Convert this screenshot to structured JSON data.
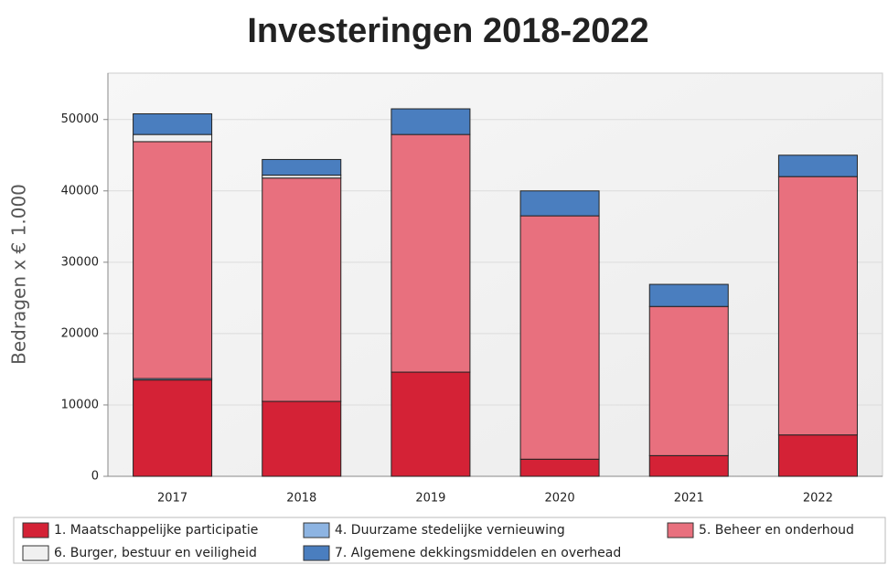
{
  "chart_data": {
    "type": "bar",
    "stacked": true,
    "title": "Investeringen 2018-2022",
    "y_label": "Bedragen x € 1.000",
    "categories": [
      "2017",
      "2018",
      "2019",
      "2020",
      "2021",
      "2022"
    ],
    "series": [
      {
        "name": "1. Maatschappelijke participatie",
        "color": "#d42236",
        "values": [
          13500,
          10500,
          14600,
          2400,
          2900,
          5800
        ]
      },
      {
        "name": "4. Duurzame stedelijke vernieuwing",
        "color": "#8db4e2",
        "values": [
          200,
          0,
          0,
          0,
          0,
          0
        ]
      },
      {
        "name": "5. Beheer en onderhoud",
        "color": "#e8707e",
        "values": [
          33200,
          31300,
          33300,
          34100,
          20900,
          36200
        ]
      },
      {
        "name": "6. Burger, bestuur en veiligheid",
        "color": "#f0f0f0",
        "values": [
          1000,
          400,
          0,
          0,
          0,
          0
        ]
      },
      {
        "name": "7. Algemene dekkingsmiddelen en overhead",
        "color": "#4a7ebf",
        "values": [
          2900,
          2200,
          3600,
          3500,
          3100,
          3000
        ]
      }
    ],
    "ylim": [
      0,
      56500
    ],
    "yticks": [
      0,
      10000,
      20000,
      30000,
      40000,
      50000
    ],
    "grid": true
  }
}
